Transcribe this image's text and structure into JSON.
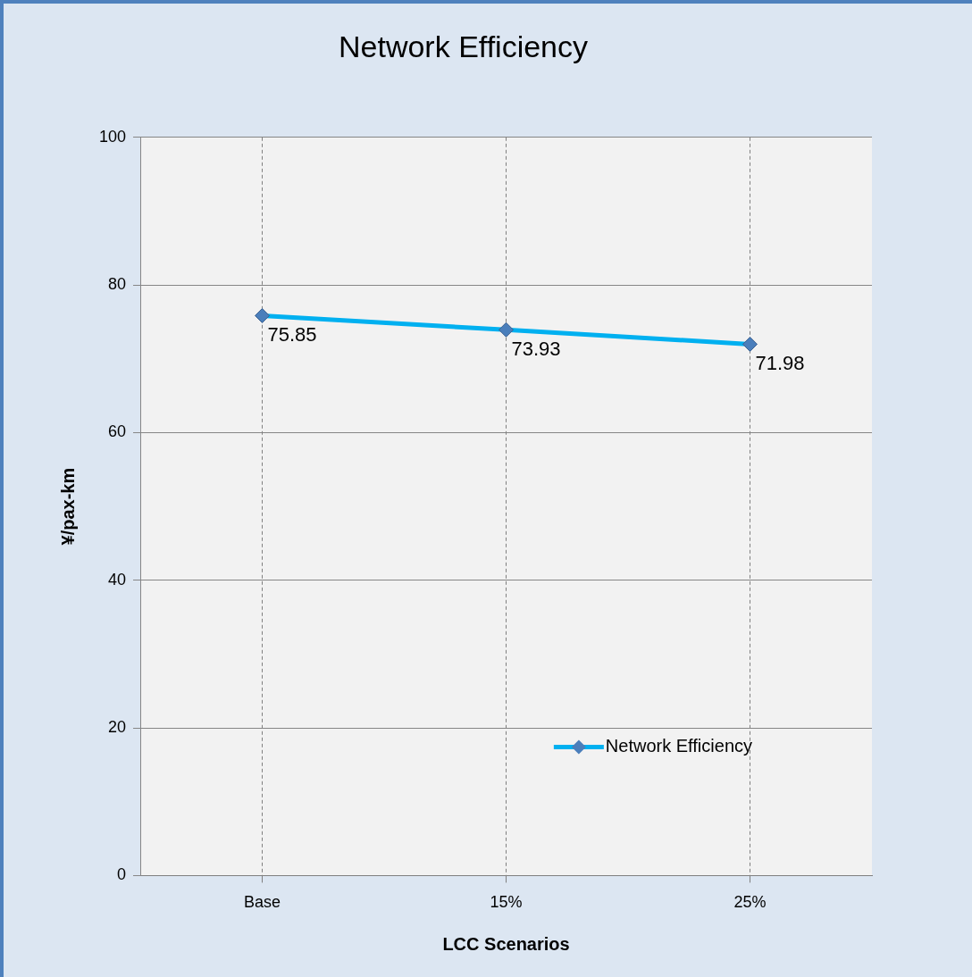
{
  "chart_data": {
    "type": "line",
    "title": "Network Efficiency",
    "xlabel": "LCC Scenarios",
    "ylabel": "¥/pax-km",
    "categories": [
      "Base",
      "15%",
      "25%"
    ],
    "series": [
      {
        "name": "Network Efficiency",
        "color": "#00b0f0",
        "values": [
          75.85,
          73.93,
          71.98
        ]
      }
    ],
    "ylim": [
      0,
      100
    ],
    "yticks": [
      0,
      20,
      40,
      60,
      80,
      100
    ],
    "grid": true,
    "legend": "bottom right",
    "marker": "diamond",
    "line_style": "solid",
    "data_labels": true
  }
}
